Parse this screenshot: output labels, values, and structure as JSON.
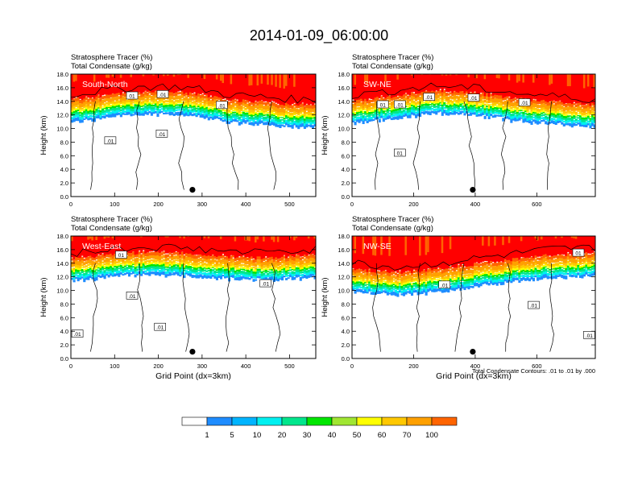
{
  "title": "2014-01-09_06:00:00",
  "colors": {
    "tracer_levels": [
      "#ffffff",
      "#1e8cff",
      "#00b4ff",
      "#00f0f0",
      "#00e68c",
      "#00e600",
      "#a0e632",
      "#ffff00",
      "#ffc800",
      "#ffa000",
      "#ff6400",
      "#ff0000"
    ],
    "contour": "#000000"
  },
  "colorbar": {
    "labels": [
      "1",
      "5",
      "10",
      "20",
      "30",
      "40",
      "50",
      "60",
      "70",
      "100"
    ]
  },
  "footnote": "Total Condensate Contours: .01 to .01 by .000",
  "chart_data": [
    {
      "type": "heatmap",
      "label": "South-North",
      "subtitle_1": "Stratosphere Tracer   (%)",
      "subtitle_2": "Total Condensate   (g/kg)",
      "ylabel": "Height (km)",
      "xlabel": "",
      "xlim": [
        0,
        560
      ],
      "ylim": [
        0,
        18
      ],
      "xticks": [
        "0",
        "100",
        "200",
        "300",
        "400",
        "500"
      ],
      "xtick_values": [
        0,
        100,
        200,
        300,
        400,
        500
      ],
      "yticks": [
        "0.0",
        "2.0",
        "4.0",
        "6.0",
        "8.0",
        "10.0",
        "12.0",
        "14.0",
        "16.0",
        "18.0"
      ],
      "contour_labels": [
        "01",
        ".01",
        ".01",
        ".01",
        ".01"
      ],
      "contour_label_points": [
        [
          140,
          14.8
        ],
        [
          210,
          15.0
        ],
        [
          345,
          13.4
        ],
        [
          90,
          8.2
        ],
        [
          208,
          9.2
        ]
      ],
      "marker_point": [
        278,
        1.0
      ],
      "tropopause_km": [
        14.2,
        14.6,
        15.0,
        15.3,
        15.4,
        15.3,
        14.9,
        14.2,
        14.0,
        13.8,
        13.5,
        13.4
      ]
    },
    {
      "type": "heatmap",
      "label": "SW-NE",
      "subtitle_1": "Stratosphere Tracer   (%)",
      "subtitle_2": "Total Condensate   (g/kg)",
      "ylabel": "Height (km)",
      "xlabel": "",
      "xlim": [
        0,
        790
      ],
      "ylim": [
        0,
        18
      ],
      "xticks": [
        "0",
        "200",
        "400",
        "600"
      ],
      "xtick_values": [
        0,
        200,
        400,
        600
      ],
      "yticks": [
        "0.0",
        "2.0",
        "4.0",
        "6.0",
        "8.0",
        "10.0",
        "12.0",
        "14.0",
        "16.0",
        "18.0"
      ],
      "contour_labels": [
        "01",
        ".01",
        ".01",
        ".01",
        ".01",
        "01"
      ],
      "contour_label_points": [
        [
          100,
          13.5
        ],
        [
          155,
          13.5
        ],
        [
          250,
          14.6
        ],
        [
          395,
          14.5
        ],
        [
          560,
          13.8
        ],
        [
          155,
          6.4
        ]
      ],
      "marker_point": [
        392,
        1.0
      ],
      "tropopause_km": [
        14.0,
        14.4,
        14.8,
        15.2,
        15.5,
        15.3,
        15.0,
        14.6,
        14.2,
        14.0,
        13.7,
        13.5
      ]
    },
    {
      "type": "heatmap",
      "label": "West-East",
      "subtitle_1": "Stratosphere Tracer   (%)",
      "subtitle_2": "Total Condensate   (g/kg)",
      "ylabel": "Height (km)",
      "xlabel": "Grid Point (dx=3km)",
      "xlim": [
        0,
        560
      ],
      "ylim": [
        0,
        18
      ],
      "xticks": [
        "0",
        "100",
        "200",
        "300",
        "400",
        "500"
      ],
      "xtick_values": [
        0,
        100,
        200,
        300,
        400,
        500
      ],
      "yticks": [
        "0.0",
        "2.0",
        "4.0",
        "6.0",
        "8.0",
        "10.0",
        "12.0",
        "14.0",
        "16.0",
        "18.0"
      ],
      "contour_labels": [
        "01",
        ".01",
        ".01",
        ".01",
        ".01"
      ],
      "contour_label_points": [
        [
          115,
          15.2
        ],
        [
          140,
          9.2
        ],
        [
          445,
          11.0
        ],
        [
          204,
          4.6
        ],
        [
          15,
          3.6
        ]
      ],
      "marker_point": [
        278,
        1.0
      ],
      "tropopause_km": [
        14.6,
        15.0,
        15.3,
        15.5,
        15.6,
        15.4,
        15.2,
        15.0,
        14.8,
        14.8,
        15.0,
        15.3
      ]
    },
    {
      "type": "heatmap",
      "label": "NW-SE",
      "subtitle_1": "Stratosphere Tracer   (%)",
      "subtitle_2": "Total Condensate   (g/kg)",
      "ylabel": "Height (km)",
      "xlabel": "Grid Point (dx=3km)",
      "xlim": [
        0,
        790
      ],
      "ylim": [
        0,
        18
      ],
      "xticks": [
        "0",
        "200",
        "400",
        "600"
      ],
      "xtick_values": [
        0,
        200,
        400,
        600
      ],
      "yticks": [
        "0.0",
        "2.0",
        "4.0",
        "6.0",
        "8.0",
        "10.0",
        "12.0",
        "14.0",
        "16.0",
        "18.0"
      ],
      "contour_labels": [
        "01",
        ".01",
        ".01",
        ".01"
      ],
      "contour_label_points": [
        [
          735,
          15.5
        ],
        [
          300,
          10.8
        ],
        [
          590,
          7.8
        ],
        [
          770,
          3.4
        ]
      ],
      "marker_point": [
        392,
        1.0
      ],
      "tropopause_km": [
        13.2,
        12.8,
        12.6,
        12.8,
        13.2,
        13.6,
        14.0,
        14.4,
        14.8,
        15.2,
        15.3,
        15.4
      ]
    }
  ]
}
